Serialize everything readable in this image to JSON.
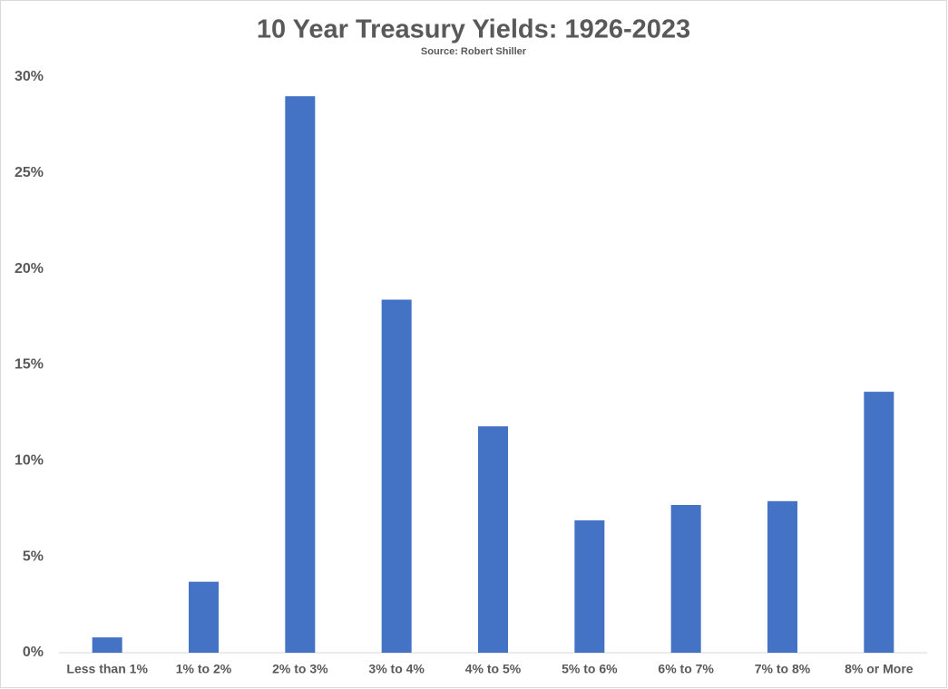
{
  "chart_data": {
    "type": "bar",
    "title": "10 Year Treasury Yields: 1926-2023",
    "subtitle": "Source: Robert Shiller",
    "categories": [
      "Less than 1%",
      "1% to 2%",
      "2% to 3%",
      "3% to 4%",
      "4% to 5%",
      "5% to 6%",
      "6% to 7%",
      "7% to 8%",
      "8% or More"
    ],
    "values": [
      0.8,
      3.7,
      29.0,
      18.4,
      11.8,
      6.9,
      7.7,
      7.9,
      13.6
    ],
    "color": "#4472c4",
    "ylim": [
      0,
      30
    ],
    "yticks": [
      {
        "value": 0,
        "label": "0%"
      },
      {
        "value": 5,
        "label": "5%"
      },
      {
        "value": 10,
        "label": "10%"
      },
      {
        "value": 15,
        "label": "15%"
      },
      {
        "value": 20,
        "label": "20%"
      },
      {
        "value": 25,
        "label": "25%"
      },
      {
        "value": 30,
        "label": "30%"
      }
    ],
    "grid": false
  }
}
